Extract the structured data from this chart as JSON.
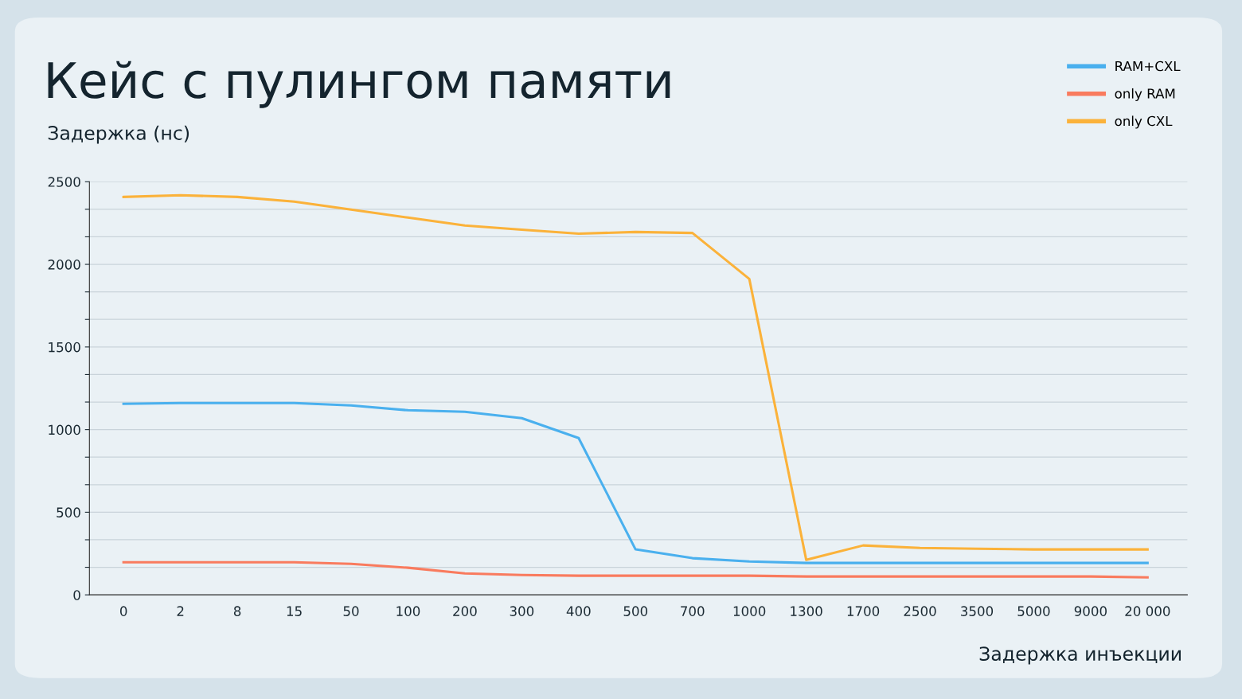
{
  "chart_data": {
    "type": "line",
    "title": "Кейс с пулингом памяти",
    "ylabel": "Задержка (нс)",
    "xlabel": "Задержка инъекции",
    "categories": [
      "0",
      "2",
      "8",
      "15",
      "50",
      "100",
      "200",
      "300",
      "400",
      "500",
      "700",
      "1000",
      "1300",
      "1700",
      "2500",
      "3500",
      "5000",
      "9000",
      "20 000"
    ],
    "series": [
      {
        "name": "RAM+CXL",
        "color": "#4ab0ee",
        "values": [
          1156,
          1161,
          1161,
          1161,
          1146,
          1117,
          1108,
          1069,
          949,
          275,
          222,
          202,
          193,
          193,
          193,
          193,
          193,
          193,
          193
        ]
      },
      {
        "name": "only RAM",
        "color": "#f97b5e",
        "values": [
          197,
          197,
          197,
          197,
          188,
          164,
          130,
          120,
          116,
          116,
          116,
          116,
          111,
          111,
          111,
          111,
          111,
          111,
          106
        ]
      },
      {
        "name": "only CXL",
        "color": "#fbb23a",
        "values": [
          2408,
          2418,
          2408,
          2380,
          2331,
          2283,
          2235,
          2210,
          2186,
          2196,
          2190,
          1912,
          212,
          299,
          284,
          279,
          275,
          275,
          275
        ]
      }
    ],
    "ylim": [
      0,
      2500
    ],
    "yticks": [
      0,
      {
        "value": 166.7,
        "label": null
      },
      {
        "value": 333.3,
        "label": null
      },
      500,
      {
        "value": 666.7,
        "label": null
      },
      {
        "value": 833.3,
        "label": null
      },
      1000,
      {
        "value": 1166.7,
        "label": null
      },
      {
        "value": 1333.3,
        "label": null
      },
      1500,
      {
        "value": 1666.7,
        "label": null
      },
      {
        "value": 1833.3,
        "label": null
      },
      2000,
      {
        "value": 2166.7,
        "label": null
      },
      {
        "value": 2333.3,
        "label": null
      },
      2500
    ],
    "grid": "y",
    "legend": "top right",
    "marker": "none",
    "line_style": "solid"
  }
}
